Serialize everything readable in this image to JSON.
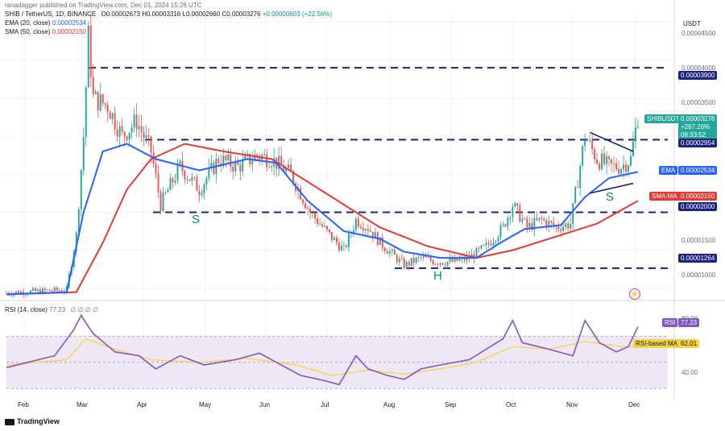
{
  "header": {
    "publisher": "ranadagger published on TradingView.com, Dec 01, 2024 15:26 UTC",
    "symbol": "SHIB / TetherUS, 1D, BINANCE",
    "ohlc": {
      "O": "0.00002673",
      "H": "0.00003316",
      "L": "0.00002660",
      "C": "0.00003276",
      "change": "+0.00000603 (+22.56%)"
    },
    "ema_label": "EMA (20, close)",
    "ema_value": "0.00002534",
    "sma_label": "SMA (50, close)",
    "sma_value": "0.00002150",
    "currency": "USDT"
  },
  "price_axis": {
    "ticks": [
      "0.00004500",
      "0.00004000",
      "0.00003500",
      "0.00001500",
      "0.00001000"
    ]
  },
  "badges": {
    "symbol_tag": "SHIBUSDT",
    "price": "0.00003276",
    "pct": "+267.26%",
    "countdown": "08:33:52",
    "level_3900": "0.00003900",
    "level_2954": "0.00002954",
    "ema_label": "EMA",
    "ema_value": "0.00002534",
    "sma_label": "SMA:MA",
    "sma_value": "0.00002150",
    "level_2000": "0.00002000",
    "level_1264": "0.00001264"
  },
  "annotations": {
    "s_left": "S",
    "head": "H",
    "s_right": "S"
  },
  "rsi": {
    "label": "RSI (14, close)",
    "value": "77.23",
    "ma_label": "RSI-based MA",
    "ma_value": "62.01",
    "tick_80": "80.00",
    "tick_40": "40.00",
    "badge_label": "RSI"
  },
  "time_axis": [
    "Feb",
    "Mar",
    "Apr",
    "May",
    "Jun",
    "Jul",
    "Aug",
    "Sep",
    "Oct",
    "Nov",
    "Dec"
  ],
  "footer": {
    "brand": "TradingView"
  },
  "colors": {
    "up": "#26a69a",
    "down": "#ef5350",
    "ema": "#2962ff",
    "sma": "#e53935",
    "level": "#1a237e",
    "rsi": "#7e57c2",
    "rsi_ma": "#f5d442",
    "rsi_band": "#ede7f6"
  },
  "chart_data": {
    "type": "candlestick",
    "price_range": [
      8.5e-06,
      4.6e-05
    ],
    "levels": [
      3.9e-05,
      2.954e-05,
      2e-05,
      1.264e-05
    ],
    "months": [
      "Feb",
      "Mar",
      "Apr",
      "May",
      "Jun",
      "Jul",
      "Aug",
      "Sep",
      "Oct",
      "Nov",
      "Dec"
    ],
    "close_path": [
      [
        0,
        9.4e-06
      ],
      [
        25,
        9.8e-06
      ],
      [
        29,
        1.7e-05
      ],
      [
        32,
        3e-05
      ],
      [
        34,
        4.3e-05
      ],
      [
        36,
        3.5e-05
      ],
      [
        42,
        3.4e-05
      ],
      [
        48,
        3e-05
      ],
      [
        54,
        3.2e-05
      ],
      [
        60,
        2.8e-05
      ],
      [
        64,
        2.1e-05
      ],
      [
        72,
        2.6e-05
      ],
      [
        80,
        2.3e-05
      ],
      [
        88,
        2.7e-05
      ],
      [
        96,
        2.6e-05
      ],
      [
        104,
        2.75e-05
      ],
      [
        110,
        2.7e-05
      ],
      [
        118,
        2.5e-05
      ],
      [
        126,
        2e-05
      ],
      [
        134,
        1.7e-05
      ],
      [
        140,
        1.5e-05
      ],
      [
        145,
        1.9e-05
      ],
      [
        150,
        1.8e-05
      ],
      [
        155,
        1.6e-05
      ],
      [
        160,
        1.45e-05
      ],
      [
        165,
        1.3e-05
      ],
      [
        172,
        1.4e-05
      ],
      [
        178,
        1.35e-05
      ],
      [
        185,
        1.35e-05
      ],
      [
        192,
        1.4e-05
      ],
      [
        199,
        1.55e-05
      ],
      [
        206,
        1.8e-05
      ],
      [
        210,
        2.1e-05
      ],
      [
        216,
        1.8e-05
      ],
      [
        222,
        1.9e-05
      ],
      [
        228,
        1.8e-05
      ],
      [
        234,
        1.85e-05
      ],
      [
        240,
        3e-05
      ],
      [
        245,
        2.7e-05
      ],
      [
        250,
        2.6e-05
      ],
      [
        255,
        2.6e-05
      ],
      [
        259,
        2.7e-05
      ],
      [
        262,
        3.27e-05
      ]
    ],
    "ema20": [
      [
        0,
        9.2e-06
      ],
      [
        25,
        9.5e-06
      ],
      [
        32,
        2e-05
      ],
      [
        40,
        2.8e-05
      ],
      [
        50,
        2.9e-05
      ],
      [
        62,
        2.7e-05
      ],
      [
        80,
        2.55e-05
      ],
      [
        100,
        2.7e-05
      ],
      [
        112,
        2.65e-05
      ],
      [
        125,
        2.15e-05
      ],
      [
        140,
        1.75e-05
      ],
      [
        155,
        1.65e-05
      ],
      [
        165,
        1.48e-05
      ],
      [
        180,
        1.4e-05
      ],
      [
        195,
        1.4e-05
      ],
      [
        205,
        1.6e-05
      ],
      [
        215,
        1.78e-05
      ],
      [
        230,
        1.83e-05
      ],
      [
        240,
        2.2e-05
      ],
      [
        250,
        2.45e-05
      ],
      [
        262,
        2.53e-05
      ]
    ],
    "sma50": [
      [
        0,
        9.2e-06
      ],
      [
        29,
        9.5e-06
      ],
      [
        40,
        1.6e-05
      ],
      [
        50,
        2.3e-05
      ],
      [
        60,
        2.7e-05
      ],
      [
        74,
        2.9e-05
      ],
      [
        90,
        2.8e-05
      ],
      [
        110,
        2.7e-05
      ],
      [
        125,
        2.4e-05
      ],
      [
        140,
        2.1e-05
      ],
      [
        155,
        1.8e-05
      ],
      [
        175,
        1.55e-05
      ],
      [
        195,
        1.4e-05
      ],
      [
        210,
        1.5e-05
      ],
      [
        230,
        1.7e-05
      ],
      [
        245,
        1.85e-05
      ],
      [
        262,
        2.15e-05
      ]
    ],
    "rsi": [
      [
        0,
        46
      ],
      [
        20,
        55
      ],
      [
        28,
        75
      ],
      [
        31,
        86
      ],
      [
        33,
        80
      ],
      [
        36,
        72
      ],
      [
        45,
        58
      ],
      [
        55,
        55
      ],
      [
        62,
        45
      ],
      [
        72,
        55
      ],
      [
        82,
        48
      ],
      [
        95,
        52
      ],
      [
        105,
        57
      ],
      [
        112,
        50
      ],
      [
        122,
        40
      ],
      [
        132,
        36
      ],
      [
        138,
        33
      ],
      [
        145,
        55
      ],
      [
        150,
        45
      ],
      [
        158,
        40
      ],
      [
        165,
        37
      ],
      [
        172,
        45
      ],
      [
        180,
        48
      ],
      [
        192,
        52
      ],
      [
        199,
        60
      ],
      [
        206,
        68
      ],
      [
        210,
        82
      ],
      [
        214,
        65
      ],
      [
        225,
        60
      ],
      [
        235,
        55
      ],
      [
        240,
        82
      ],
      [
        246,
        65
      ],
      [
        253,
        58
      ],
      [
        258,
        62
      ],
      [
        262,
        77.23
      ]
    ],
    "rsi_ma": [
      [
        0,
        48
      ],
      [
        25,
        52
      ],
      [
        33,
        68
      ],
      [
        45,
        60
      ],
      [
        60,
        52
      ],
      [
        80,
        50
      ],
      [
        100,
        53
      ],
      [
        120,
        48
      ],
      [
        135,
        40
      ],
      [
        150,
        44
      ],
      [
        165,
        41
      ],
      [
        180,
        45
      ],
      [
        195,
        50
      ],
      [
        210,
        62
      ],
      [
        225,
        60
      ],
      [
        240,
        66
      ],
      [
        255,
        62
      ],
      [
        262,
        62.01
      ]
    ],
    "rsi_range": [
      24,
      96
    ],
    "trendlines": [
      {
        "from": [
          242,
          3.05e-05
        ],
        "to": [
          260,
          2.8e-05
        ]
      },
      {
        "from": [
          242,
          2.25e-05
        ],
        "to": [
          260,
          2.38e-05
        ]
      }
    ]
  }
}
